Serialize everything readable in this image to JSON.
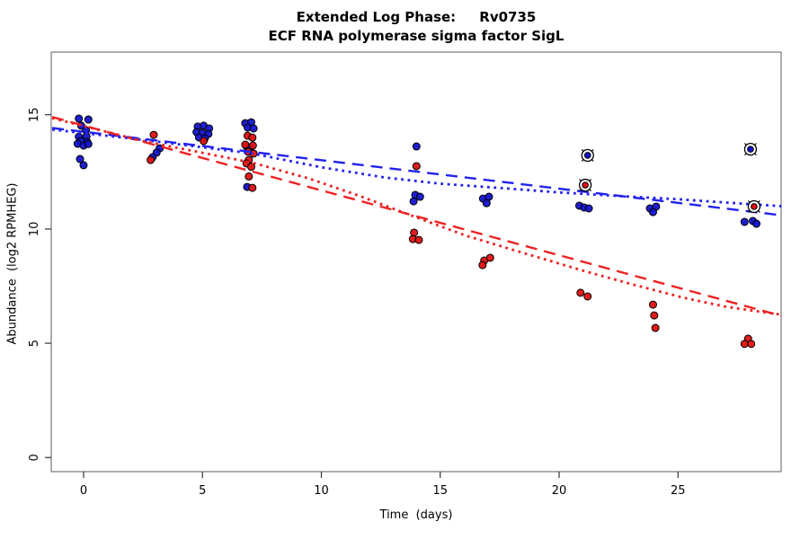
{
  "chart_data": {
    "type": "scatter",
    "title": "Extended Log Phase:     Rv0735",
    "subtitle": "ECF RNA polymerase sigma factor SigL",
    "xlabel": "Time  (days)",
    "ylabel": "Abundance  (log2 RPMHEG)",
    "xlim": [
      -1.32,
      29.35
    ],
    "ylim": [
      -0.4,
      17.7
    ],
    "xticks": [
      0,
      5,
      10,
      15,
      20,
      25
    ],
    "yticks": [
      0,
      5,
      10,
      15
    ],
    "grid": false,
    "legend": "none",
    "colors": {
      "blue": "#1212cc",
      "red": "#dd1111",
      "blue_line": "#2222ee",
      "red_line": "#ee2222",
      "box": "#777777",
      "tick": "#333333"
    },
    "series": [
      {
        "name": "condition-blue-points",
        "type": "points",
        "color": "#1212cc",
        "points": [
          [
            -0.2,
            14.83
          ],
          [
            0.2,
            14.79
          ],
          [
            -0.1,
            14.52
          ],
          [
            0.1,
            14.32
          ],
          [
            -0.2,
            14.04
          ],
          [
            0.12,
            14.05
          ],
          [
            -0.12,
            13.85
          ],
          [
            0.15,
            13.81
          ],
          [
            -0.25,
            13.73
          ],
          [
            0.0,
            13.65
          ],
          [
            0.2,
            13.72
          ],
          [
            -0.15,
            13.06
          ],
          [
            0.0,
            12.79
          ],
          [
            3.2,
            13.53
          ],
          [
            3.07,
            13.34
          ],
          [
            2.9,
            13.14
          ],
          [
            4.8,
            14.48
          ],
          [
            5.05,
            14.52
          ],
          [
            5.28,
            14.4
          ],
          [
            4.75,
            14.24
          ],
          [
            5.0,
            14.2
          ],
          [
            5.25,
            14.16
          ],
          [
            4.85,
            14.01
          ],
          [
            5.1,
            13.97
          ],
          [
            6.8,
            14.63
          ],
          [
            7.05,
            14.67
          ],
          [
            6.9,
            14.44
          ],
          [
            7.15,
            14.4
          ],
          [
            6.85,
            13.62
          ],
          [
            7.0,
            13.57
          ],
          [
            6.88,
            11.84
          ],
          [
            14.0,
            13.61
          ],
          [
            13.95,
            11.49
          ],
          [
            14.15,
            11.41
          ],
          [
            13.88,
            11.21
          ],
          [
            16.8,
            11.33
          ],
          [
            17.05,
            11.41
          ],
          [
            16.95,
            11.13
          ],
          [
            20.85,
            11.02
          ],
          [
            21.05,
            10.94
          ],
          [
            21.25,
            10.9
          ],
          [
            23.82,
            10.9
          ],
          [
            24.08,
            10.98
          ],
          [
            23.95,
            10.74
          ],
          [
            27.8,
            10.31
          ],
          [
            28.15,
            10.35
          ],
          [
            28.3,
            10.23
          ]
        ]
      },
      {
        "name": "condition-red-points",
        "type": "points",
        "color": "#dd1111",
        "points": [
          [
            2.95,
            14.12
          ],
          [
            2.82,
            13.02
          ],
          [
            5.05,
            13.85
          ],
          [
            6.9,
            14.08
          ],
          [
            7.1,
            14.0
          ],
          [
            6.8,
            13.69
          ],
          [
            7.12,
            13.65
          ],
          [
            6.92,
            13.38
          ],
          [
            7.15,
            13.3
          ],
          [
            6.95,
            13.02
          ],
          [
            6.85,
            12.87
          ],
          [
            7.05,
            12.72
          ],
          [
            6.95,
            12.3
          ],
          [
            7.1,
            11.8
          ],
          [
            14.0,
            12.75
          ],
          [
            13.9,
            9.84
          ],
          [
            13.85,
            9.56
          ],
          [
            14.1,
            9.52
          ],
          [
            16.85,
            8.62
          ],
          [
            17.1,
            8.74
          ],
          [
            16.78,
            8.42
          ],
          [
            20.9,
            7.21
          ],
          [
            21.2,
            7.05
          ],
          [
            23.95,
            6.69
          ],
          [
            24.0,
            6.22
          ],
          [
            24.05,
            5.67
          ],
          [
            27.95,
            5.2
          ],
          [
            27.8,
            4.97
          ],
          [
            28.08,
            4.97
          ]
        ]
      },
      {
        "name": "blue-linear-fit",
        "type": "line",
        "style": "longdash",
        "color": "#2222ee",
        "points": [
          [
            -1.32,
            14.42
          ],
          [
            29.35,
            10.6
          ]
        ]
      },
      {
        "name": "red-linear-fit",
        "type": "line",
        "style": "longdash",
        "color": "#ee2222",
        "points": [
          [
            -1.32,
            14.9
          ],
          [
            29.35,
            6.2
          ]
        ]
      },
      {
        "name": "blue-smooth-fit",
        "type": "line",
        "style": "dotted",
        "color": "#2222ee",
        "points": [
          [
            -1.32,
            14.35
          ],
          [
            2.5,
            13.9
          ],
          [
            7.1,
            13.3
          ],
          [
            10.0,
            12.7
          ],
          [
            12.7,
            12.25
          ],
          [
            15.0,
            11.98
          ],
          [
            17.7,
            11.78
          ],
          [
            20.0,
            11.6
          ],
          [
            22.6,
            11.44
          ],
          [
            25.0,
            11.3
          ],
          [
            26.7,
            11.18
          ],
          [
            29.35,
            11.0
          ]
        ]
      },
      {
        "name": "red-smooth-fit",
        "type": "line",
        "style": "dotted",
        "color": "#ee2222",
        "points": [
          [
            -1.32,
            14.85
          ],
          [
            2.5,
            13.85
          ],
          [
            7.1,
            12.9
          ],
          [
            9.5,
            12.2
          ],
          [
            11.6,
            11.45
          ],
          [
            13.5,
            10.7
          ],
          [
            16.1,
            9.7
          ],
          [
            18.5,
            8.95
          ],
          [
            21.1,
            8.15
          ],
          [
            23.0,
            7.6
          ],
          [
            25.2,
            7.0
          ],
          [
            27.0,
            6.6
          ],
          [
            29.35,
            6.25
          ]
        ]
      },
      {
        "name": "highlighted-blue-points",
        "type": "circled-points",
        "color": "#1212cc",
        "points": [
          [
            21.2,
            13.22
          ],
          [
            28.05,
            13.49
          ]
        ]
      },
      {
        "name": "highlighted-red-points",
        "type": "circled-points",
        "color": "#dd1111",
        "points": [
          [
            21.1,
            11.92
          ],
          [
            28.2,
            10.98
          ]
        ]
      }
    ]
  }
}
